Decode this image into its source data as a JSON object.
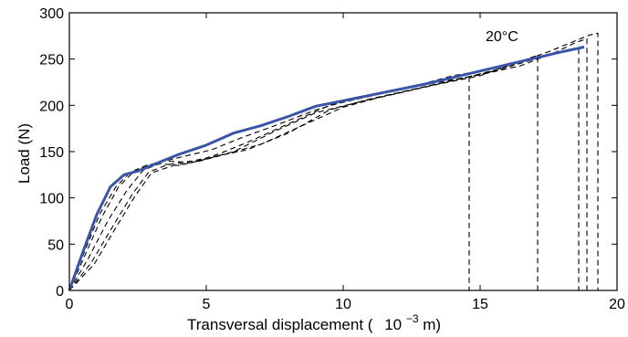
{
  "chart_data": {
    "type": "line",
    "title": "",
    "xlabel": "Transversal displacement (",
    "xlabel_unit_base": "10",
    "xlabel_unit_exp": "−3",
    "xlabel_unit_tail": "m)",
    "ylabel": "Load (N)",
    "xlim": [
      0,
      20
    ],
    "ylim": [
      0,
      300
    ],
    "x_ticks": [
      0,
      5,
      10,
      15,
      20
    ],
    "y_ticks": [
      0,
      50,
      100,
      150,
      200,
      250,
      300
    ],
    "grid": false,
    "annotation": "20°C",
    "colors": {
      "mean": "#3a55a8",
      "tests": "#000000"
    },
    "series": [
      {
        "style": "solid",
        "x": [
          0,
          0.5,
          1.0,
          1.5,
          2.0,
          2.5,
          3.0,
          4.0,
          5.0,
          6.0,
          7.0,
          8.0,
          9.0,
          10.0,
          11.0,
          12.0,
          13.0,
          14.0,
          15.0,
          16.0,
          17.0,
          18.0,
          18.8
        ],
        "y": [
          0,
          42,
          82,
          112,
          125,
          129,
          135,
          147,
          157,
          170,
          178,
          188,
          199,
          205,
          211,
          217,
          223,
          230,
          237,
          244,
          251,
          258,
          263
        ]
      },
      {
        "style": "dashed",
        "x": [
          0,
          0.6,
          1.2,
          1.8,
          2.4,
          2.8,
          3.5,
          4.5,
          5.5,
          6.5,
          8.0,
          9.5,
          11.0,
          12.5,
          14.0,
          14.6,
          14.6
        ],
        "y": [
          0,
          40,
          80,
          112,
          130,
          135,
          140,
          138,
          148,
          160,
          180,
          200,
          210,
          220,
          232,
          235,
          0
        ]
      },
      {
        "style": "dashed",
        "x": [
          0,
          0.7,
          1.4,
          2.1,
          2.7,
          3.3,
          4.0,
          5.0,
          6.0,
          7.5,
          9.0,
          10.5,
          12.0,
          13.5,
          15.0,
          16.0,
          17.1,
          17.1
        ],
        "y": [
          0,
          35,
          75,
          108,
          130,
          137,
          135,
          142,
          150,
          172,
          192,
          203,
          213,
          223,
          232,
          243,
          254,
          0
        ]
      },
      {
        "style": "dashed",
        "x": [
          0,
          0.8,
          1.6,
          2.3,
          2.9,
          3.6,
          4.5,
          5.5,
          6.5,
          8.0,
          9.5,
          11.0,
          12.5,
          14.0,
          15.5,
          17.0,
          18.6,
          18.6
        ],
        "y": [
          0,
          30,
          70,
          104,
          128,
          136,
          140,
          146,
          152,
          170,
          195,
          207,
          217,
          227,
          237,
          250,
          262,
          0
        ]
      },
      {
        "style": "dashed",
        "x": [
          0,
          0.5,
          1.1,
          1.7,
          2.2,
          2.7,
          3.2,
          4.2,
          5.2,
          6.2,
          7.5,
          9.0,
          10.5,
          12.0,
          13.5,
          15.0,
          16.5,
          17.8,
          18.5,
          18.9,
          18.9
        ],
        "y": [
          0,
          38,
          82,
          112,
          127,
          133,
          138,
          145,
          152,
          164,
          178,
          195,
          208,
          217,
          225,
          233,
          243,
          258,
          268,
          272,
          0
        ]
      },
      {
        "style": "dashed",
        "x": [
          0,
          0.9,
          1.7,
          2.4,
          3.0,
          3.8,
          4.8,
          5.8,
          7.0,
          8.5,
          10.0,
          11.5,
          13.0,
          14.5,
          16.0,
          17.5,
          18.5,
          19.0,
          19.3,
          19.3
        ],
        "y": [
          0,
          28,
          68,
          102,
          127,
          135,
          140,
          148,
          158,
          178,
          198,
          210,
          220,
          230,
          242,
          258,
          270,
          276,
          278,
          0
        ]
      }
    ]
  }
}
